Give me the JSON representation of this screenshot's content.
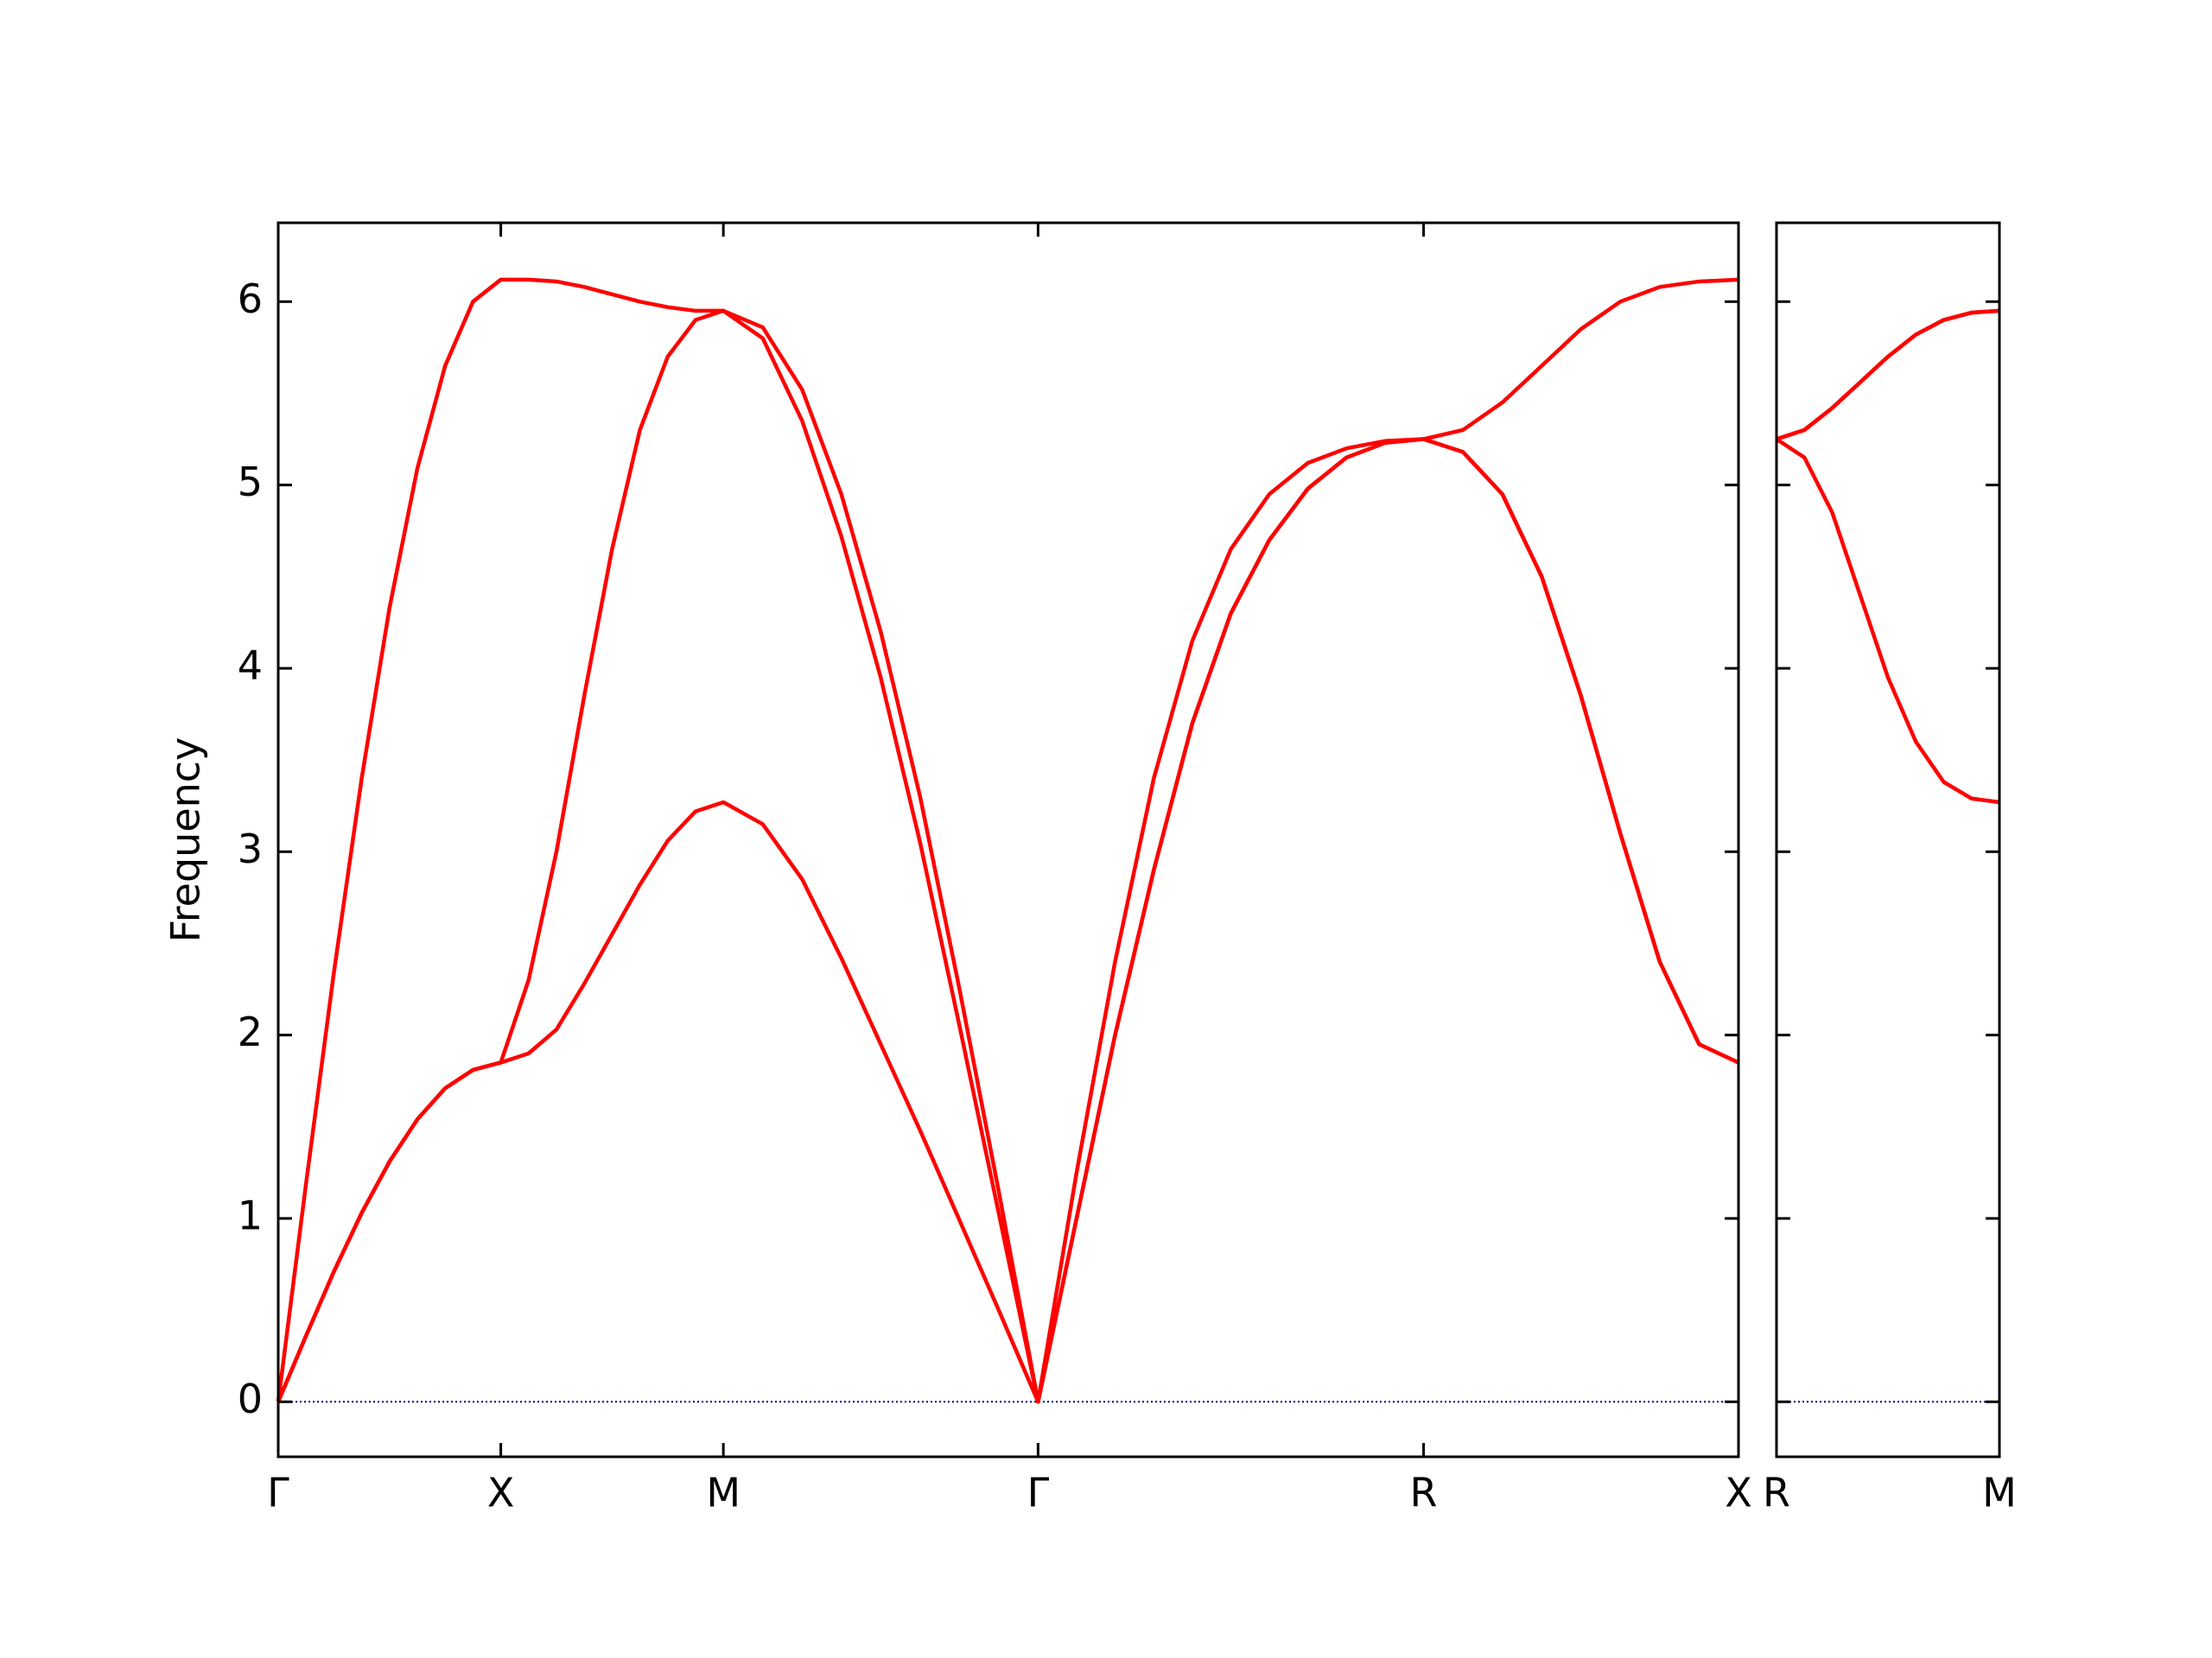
{
  "chart_data": [
    {
      "type": "line",
      "ylabel": "Frequency",
      "xlim": [
        0,
        6.561
      ],
      "ylim": [
        -0.3,
        6.43
      ],
      "xticks": [
        {
          "value": 0,
          "label": "Γ"
        },
        {
          "value": 1,
          "label": "X"
        },
        {
          "value": 2,
          "label": "M"
        },
        {
          "value": 3.414,
          "label": "Γ"
        },
        {
          "value": 5.146,
          "label": "R"
        },
        {
          "value": 6.561,
          "label": "X"
        }
      ],
      "yticks": [
        0,
        1,
        2,
        3,
        4,
        5,
        6
      ],
      "ytick_labels": true,
      "hline": {
        "value": 0,
        "color": "#000080",
        "dotted": true
      },
      "x": [
        0,
        0.125,
        0.25,
        0.375,
        0.5,
        0.625,
        0.75,
        0.875,
        1,
        1.125,
        1.25,
        1.375,
        1.5,
        1.625,
        1.75,
        1.875,
        2,
        2.177,
        2.354,
        2.53,
        2.707,
        2.884,
        3.061,
        3.237,
        3.414,
        3.587,
        3.76,
        3.934,
        4.107,
        4.28,
        4.453,
        4.626,
        4.8,
        4.973,
        5.146,
        5.323,
        5.5,
        5.677,
        5.853,
        6.03,
        6.207,
        6.384,
        6.561
      ],
      "series": [
        {
          "color": "#ff0000",
          "values": [
            0,
            0.36,
            0.71,
            1.03,
            1.31,
            1.54,
            1.71,
            1.81,
            1.85,
            1.9,
            2.03,
            2.28,
            2.55,
            2.82,
            3.06,
            3.22,
            3.27,
            3.15,
            2.85,
            2.42,
            1.95,
            1.48,
            0.99,
            0.5,
            0,
            1.0,
            2.0,
            2.9,
            3.7,
            4.3,
            4.7,
            4.98,
            5.15,
            5.23,
            5.25,
            5.18,
            4.95,
            4.5,
            3.85,
            3.1,
            2.4,
            1.95,
            1.85
          ]
        },
        {
          "color": "#ff0000",
          "values": [
            0,
            0.36,
            0.71,
            1.03,
            1.31,
            1.54,
            1.71,
            1.81,
            1.85,
            2.3,
            3.0,
            3.85,
            4.65,
            5.3,
            5.7,
            5.9,
            5.95,
            5.8,
            5.35,
            4.72,
            3.95,
            3.05,
            2.05,
            1.03,
            0,
            1.0,
            2.0,
            2.9,
            3.7,
            4.3,
            4.7,
            4.98,
            5.15,
            5.23,
            5.25,
            5.18,
            4.95,
            4.5,
            3.85,
            3.1,
            2.4,
            1.95,
            1.85
          ]
        },
        {
          "color": "#ff0000",
          "values": [
            0,
            1.19,
            2.34,
            3.4,
            4.33,
            5.09,
            5.65,
            6.0,
            6.12,
            6.12,
            6.11,
            6.08,
            6.04,
            6.0,
            5.97,
            5.95,
            5.95,
            5.86,
            5.52,
            4.95,
            4.2,
            3.3,
            2.25,
            1.15,
            0,
            1.25,
            2.4,
            3.4,
            4.15,
            4.65,
            4.95,
            5.12,
            5.2,
            5.24,
            5.25,
            5.3,
            5.45,
            5.65,
            5.85,
            6.0,
            6.08,
            6.11,
            6.12
          ]
        }
      ]
    },
    {
      "type": "line",
      "xlim": [
        0,
        1
      ],
      "ylim": [
        -0.3,
        6.43
      ],
      "xticks": [
        {
          "value": 0,
          "label": "R"
        },
        {
          "value": 1,
          "label": "M"
        }
      ],
      "yticks": [
        0,
        1,
        2,
        3,
        4,
        5,
        6
      ],
      "ytick_labels": false,
      "hline": {
        "value": 0,
        "color": "#000080",
        "dotted": true
      },
      "x": [
        0,
        0.125,
        0.25,
        0.375,
        0.5,
        0.625,
        0.75,
        0.875,
        1
      ],
      "series": [
        {
          "color": "#ff0000",
          "values": [
            5.25,
            5.15,
            4.85,
            4.4,
            3.95,
            3.6,
            3.38,
            3.29,
            3.27
          ]
        },
        {
          "color": "#ff0000",
          "values": [
            5.25,
            5.3,
            5.42,
            5.56,
            5.7,
            5.82,
            5.9,
            5.94,
            5.95
          ]
        },
        {
          "color": "#ff0000",
          "values": [
            5.25,
            5.3,
            5.42,
            5.56,
            5.7,
            5.82,
            5.9,
            5.94,
            5.95
          ]
        }
      ]
    }
  ]
}
